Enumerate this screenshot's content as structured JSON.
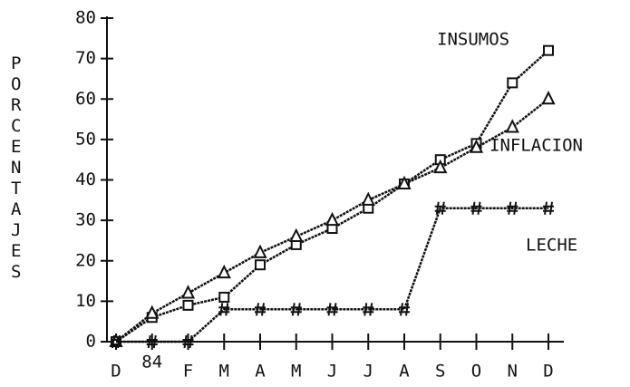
{
  "chart_data": {
    "type": "line",
    "ylabel": "PORCENTAJES",
    "categories": [
      "D",
      "84",
      "F",
      "M",
      "A",
      "M",
      "J",
      "J",
      "A",
      "S",
      "O",
      "N",
      "D"
    ],
    "series": [
      {
        "name": "INSUMOS",
        "color": "#111111",
        "marker": "square",
        "values": [
          0,
          6,
          9,
          11,
          19,
          24,
          28,
          33,
          39,
          45,
          49,
          64,
          72
        ]
      },
      {
        "name": "INFLACION",
        "color": "#111111",
        "marker": "triangle",
        "values": [
          0,
          7,
          12,
          17,
          22,
          26,
          30,
          35,
          39,
          43,
          48,
          53,
          60
        ]
      },
      {
        "name": "LECHE",
        "color": "#111111",
        "marker": "hash",
        "values": [
          0,
          0,
          0,
          8,
          8,
          8,
          8,
          8,
          8,
          33,
          33,
          33,
          33
        ]
      }
    ],
    "ylim": [
      0,
      80
    ],
    "yticks": [
      0,
      10,
      20,
      30,
      40,
      50,
      60,
      70,
      80
    ]
  }
}
